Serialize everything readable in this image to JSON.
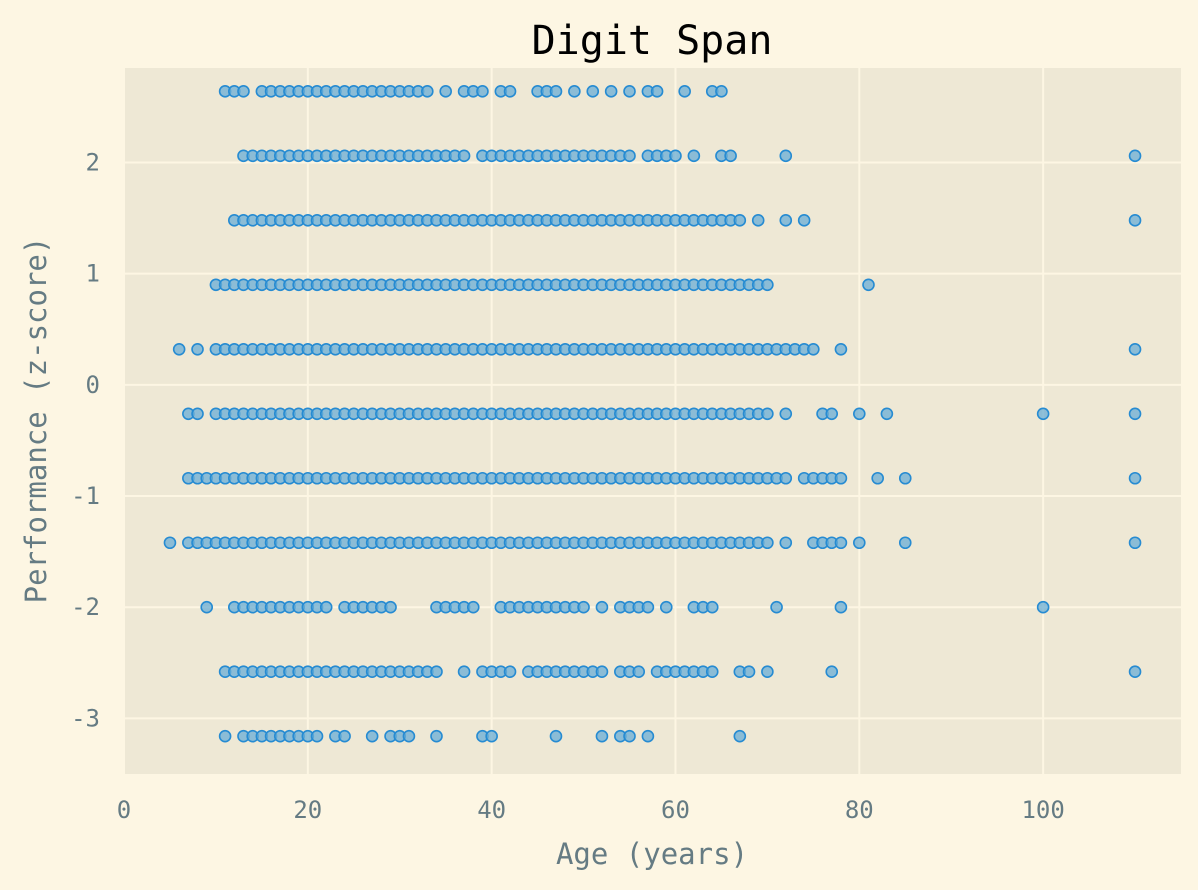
{
  "colors": {
    "figure_background": "#fdf6e3",
    "plot_background": "#eee8d5",
    "grid": "#fdf6e3",
    "text": "#657b83",
    "title": "#000000",
    "point_fill": "#6aaed6",
    "point_stroke": "#268bd2"
  },
  "chart_data": {
    "type": "scatter",
    "title": "Digit Span",
    "xlabel": "Age (years)",
    "ylabel": "Performance (z-score)",
    "xlim": [
      0,
      115
    ],
    "ylim": [
      -3.5,
      2.85
    ],
    "xticks": [
      0,
      20,
      40,
      60,
      80,
      100
    ],
    "yticks": [
      -3,
      -2,
      -1,
      0,
      1,
      2
    ],
    "grid": true,
    "legend": "none",
    "series": [
      {
        "rows": [
          {
            "y": 2.64,
            "ages": [
              11,
              12,
              13,
              15,
              16,
              17,
              18,
              19,
              20,
              21,
              22,
              23,
              24,
              25,
              26,
              27,
              28,
              29,
              30,
              31,
              32,
              33,
              35,
              37,
              38,
              39,
              41,
              42,
              45,
              46,
              47,
              49,
              51,
              53,
              55,
              57,
              58,
              61,
              64,
              65
            ]
          },
          {
            "y": 2.06,
            "ages": [
              13,
              14,
              15,
              16,
              17,
              18,
              19,
              20,
              21,
              22,
              23,
              24,
              25,
              26,
              27,
              28,
              29,
              30,
              31,
              32,
              33,
              34,
              35,
              36,
              37,
              39,
              40,
              41,
              42,
              43,
              44,
              45,
              46,
              47,
              48,
              49,
              50,
              51,
              52,
              53,
              54,
              55,
              57,
              58,
              59,
              60,
              62,
              65,
              66,
              72,
              110
            ]
          },
          {
            "y": 1.48,
            "ages": [
              12,
              13,
              14,
              15,
              16,
              17,
              18,
              19,
              20,
              21,
              22,
              23,
              24,
              25,
              26,
              27,
              28,
              29,
              30,
              31,
              32,
              33,
              34,
              35,
              36,
              37,
              38,
              39,
              40,
              41,
              42,
              43,
              44,
              45,
              46,
              47,
              48,
              49,
              50,
              51,
              52,
              53,
              54,
              55,
              56,
              57,
              58,
              59,
              60,
              61,
              62,
              63,
              64,
              65,
              66,
              67,
              69,
              72,
              74,
              110
            ]
          },
          {
            "y": 0.9,
            "ages": [
              10,
              11,
              12,
              13,
              14,
              15,
              16,
              17,
              18,
              19,
              20,
              21,
              22,
              23,
              24,
              25,
              26,
              27,
              28,
              29,
              30,
              31,
              32,
              33,
              34,
              35,
              36,
              37,
              38,
              39,
              40,
              41,
              42,
              43,
              44,
              45,
              46,
              47,
              48,
              49,
              50,
              51,
              52,
              53,
              54,
              55,
              56,
              57,
              58,
              59,
              60,
              61,
              62,
              63,
              64,
              65,
              66,
              67,
              68,
              69,
              70,
              81
            ]
          },
          {
            "y": 0.32,
            "ages": [
              6,
              8,
              10,
              11,
              12,
              13,
              14,
              15,
              16,
              17,
              18,
              19,
              20,
              21,
              22,
              23,
              24,
              25,
              26,
              27,
              28,
              29,
              30,
              31,
              32,
              33,
              34,
              35,
              36,
              37,
              38,
              39,
              40,
              41,
              42,
              43,
              44,
              45,
              46,
              47,
              48,
              49,
              50,
              51,
              52,
              53,
              54,
              55,
              56,
              57,
              58,
              59,
              60,
              61,
              62,
              63,
              64,
              65,
              66,
              67,
              68,
              69,
              70,
              71,
              72,
              73,
              74,
              75,
              78,
              110
            ]
          },
          {
            "y": -0.26,
            "ages": [
              7,
              8,
              10,
              11,
              12,
              13,
              14,
              15,
              16,
              17,
              18,
              19,
              20,
              21,
              22,
              23,
              24,
              25,
              26,
              27,
              28,
              29,
              30,
              31,
              32,
              33,
              34,
              35,
              36,
              37,
              38,
              39,
              40,
              41,
              42,
              43,
              44,
              45,
              46,
              47,
              48,
              49,
              50,
              51,
              52,
              53,
              54,
              55,
              56,
              57,
              58,
              59,
              60,
              61,
              62,
              63,
              64,
              65,
              66,
              67,
              68,
              69,
              70,
              72,
              76,
              77,
              80,
              83,
              100,
              110
            ]
          },
          {
            "y": -0.84,
            "ages": [
              7,
              8,
              9,
              10,
              11,
              12,
              13,
              14,
              15,
              16,
              17,
              18,
              19,
              20,
              21,
              22,
              23,
              24,
              25,
              26,
              27,
              28,
              29,
              30,
              31,
              32,
              33,
              34,
              35,
              36,
              37,
              38,
              39,
              40,
              41,
              42,
              43,
              44,
              45,
              46,
              47,
              48,
              49,
              50,
              51,
              52,
              53,
              54,
              55,
              56,
              57,
              58,
              59,
              60,
              61,
              62,
              63,
              64,
              65,
              66,
              67,
              68,
              69,
              70,
              71,
              72,
              74,
              75,
              76,
              77,
              78,
              82,
              85,
              110
            ]
          },
          {
            "y": -1.42,
            "ages": [
              5,
              7,
              8,
              9,
              10,
              11,
              12,
              13,
              14,
              15,
              16,
              17,
              18,
              19,
              20,
              21,
              22,
              23,
              24,
              25,
              26,
              27,
              28,
              29,
              30,
              31,
              32,
              33,
              34,
              35,
              36,
              37,
              38,
              39,
              40,
              41,
              42,
              43,
              44,
              45,
              46,
              47,
              48,
              49,
              50,
              51,
              52,
              53,
              54,
              55,
              56,
              57,
              58,
              59,
              60,
              61,
              62,
              63,
              64,
              65,
              66,
              67,
              68,
              69,
              70,
              72,
              75,
              76,
              77,
              78,
              80,
              85,
              110
            ]
          },
          {
            "y": -2.0,
            "ages": [
              9,
              12,
              13,
              14,
              15,
              16,
              17,
              18,
              19,
              20,
              21,
              22,
              24,
              25,
              26,
              27,
              28,
              29,
              34,
              35,
              36,
              37,
              38,
              41,
              42,
              43,
              44,
              45,
              46,
              47,
              48,
              49,
              50,
              52,
              54,
              55,
              56,
              57,
              59,
              62,
              63,
              64,
              71,
              78,
              100
            ]
          },
          {
            "y": -2.58,
            "ages": [
              11,
              12,
              13,
              14,
              15,
              16,
              17,
              18,
              19,
              20,
              21,
              22,
              23,
              24,
              25,
              26,
              27,
              28,
              29,
              30,
              31,
              32,
              33,
              34,
              37,
              39,
              40,
              41,
              42,
              44,
              45,
              46,
              47,
              48,
              49,
              50,
              51,
              52,
              54,
              55,
              56,
              58,
              59,
              60,
              61,
              62,
              63,
              64,
              67,
              68,
              70,
              77,
              110
            ]
          },
          {
            "y": -3.16,
            "ages": [
              11,
              13,
              14,
              15,
              16,
              17,
              18,
              19,
              20,
              21,
              23,
              24,
              27,
              29,
              30,
              31,
              34,
              39,
              40,
              47,
              52,
              54,
              55,
              57,
              67
            ]
          }
        ]
      }
    ]
  }
}
